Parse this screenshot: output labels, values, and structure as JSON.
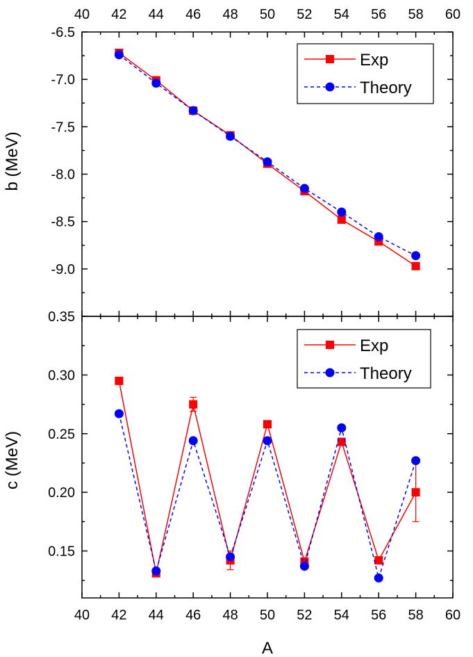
{
  "colors": {
    "exp": "#ff0000",
    "theory": "#0000ff",
    "axis": "#000000"
  },
  "chart_data": [
    {
      "type": "line",
      "panel": "top",
      "xlabel": "A",
      "ylabel": "b (MeV)",
      "xlim": [
        40,
        60
      ],
      "ylim": [
        -9.5,
        -6.5
      ],
      "xticks": [
        "40",
        "42",
        "44",
        "46",
        "48",
        "50",
        "52",
        "54",
        "56",
        "58",
        "60"
      ],
      "yticks": [
        "-6.5",
        "-7.0",
        "-7.5",
        "-8.0",
        "-8.5",
        "-9.0"
      ],
      "legend_position": "top-right",
      "x": [
        42,
        44,
        46,
        48,
        50,
        52,
        54,
        56,
        58
      ],
      "series": [
        {
          "name": "Exp",
          "marker": "square",
          "line": "solid",
          "color": "#ff0000",
          "values": [
            -6.72,
            -7.01,
            -7.33,
            -7.59,
            -7.89,
            -8.18,
            -8.48,
            -8.71,
            -8.97
          ]
        },
        {
          "name": "Theory",
          "marker": "circle",
          "line": "dashed",
          "color": "#0000ff",
          "values": [
            -6.74,
            -7.04,
            -7.33,
            -7.6,
            -7.87,
            -8.15,
            -8.4,
            -8.66,
            -8.86
          ]
        }
      ]
    },
    {
      "type": "line",
      "panel": "bottom",
      "xlabel": "A",
      "ylabel": "c (MeV)",
      "xlim": [
        40,
        60
      ],
      "ylim": [
        0.11,
        0.35
      ],
      "xticks": [
        "40",
        "42",
        "44",
        "46",
        "48",
        "50",
        "52",
        "54",
        "56",
        "58",
        "60"
      ],
      "yticks": [
        "0.15",
        "0.20",
        "0.25",
        "0.30",
        "0.35"
      ],
      "legend_position": "top-right",
      "x": [
        42,
        44,
        46,
        48,
        50,
        52,
        54,
        56,
        58
      ],
      "series": [
        {
          "name": "Exp",
          "marker": "square",
          "line": "solid",
          "color": "#ff0000",
          "values": [
            0.295,
            0.131,
            0.275,
            0.142,
            0.258,
            0.141,
            0.243,
            0.142,
            0.2
          ],
          "errors": [
            0.001,
            0.001,
            0.006,
            0.008,
            0.003,
            0.003,
            0.003,
            0.002,
            0.025
          ]
        },
        {
          "name": "Theory",
          "marker": "circle",
          "line": "dashed",
          "color": "#0000ff",
          "values": [
            0.267,
            0.133,
            0.244,
            0.145,
            0.244,
            0.137,
            0.255,
            0.127,
            0.227
          ]
        }
      ]
    }
  ]
}
